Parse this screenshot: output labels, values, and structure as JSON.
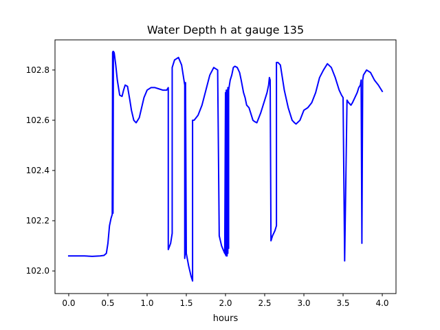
{
  "chart_data": {
    "type": "line",
    "title": "Water Depth h at gauge 135",
    "xlabel": "hours",
    "ylabel": "",
    "xlim": [
      -0.175,
      4.175
    ],
    "ylim": [
      101.91,
      102.92
    ],
    "xticks": [
      0.0,
      0.5,
      1.0,
      1.5,
      2.0,
      2.5,
      3.0,
      3.5,
      4.0
    ],
    "xtick_labels": [
      "0.0",
      "0.5",
      "1.0",
      "1.5",
      "2.0",
      "2.5",
      "3.0",
      "3.5",
      "4.0"
    ],
    "yticks": [
      102.0,
      102.2,
      102.4,
      102.6,
      102.8
    ],
    "ytick_labels": [
      "102.0",
      "102.2",
      "102.4",
      "102.6",
      "102.8"
    ],
    "grid": false,
    "legend": "none",
    "color": "#0000ff",
    "series": [
      {
        "x": [
          0.0,
          0.1,
          0.2,
          0.3,
          0.4,
          0.45,
          0.48,
          0.5,
          0.52,
          0.54,
          0.555,
          0.56,
          0.565,
          0.565,
          0.57,
          0.58,
          0.6,
          0.62,
          0.65,
          0.68,
          0.7,
          0.72,
          0.75,
          0.78,
          0.8,
          0.83,
          0.86,
          0.9,
          0.93,
          0.96,
          1.0,
          1.05,
          1.1,
          1.15,
          1.2,
          1.25,
          1.27,
          1.27,
          1.3,
          1.32,
          1.32,
          1.35,
          1.4,
          1.44,
          1.47,
          1.48,
          1.48,
          1.49,
          1.49,
          1.5,
          1.53,
          1.56,
          1.58,
          1.58,
          1.6,
          1.65,
          1.7,
          1.75,
          1.8,
          1.85,
          1.9,
          1.92,
          1.92,
          1.95,
          1.99,
          2.0,
          2.0,
          2.01,
          2.01,
          2.02,
          2.02,
          2.03,
          2.03,
          2.04,
          2.04,
          2.06,
          2.08,
          2.1,
          2.12,
          2.15,
          2.18,
          2.2,
          2.23,
          2.25,
          2.27,
          2.3,
          2.33,
          2.35,
          2.37,
          2.4,
          2.45,
          2.5,
          2.53,
          2.55,
          2.56,
          2.57,
          2.58,
          2.58,
          2.6,
          2.63,
          2.65,
          2.65,
          2.67,
          2.7,
          2.72,
          2.75,
          2.8,
          2.85,
          2.88,
          2.9,
          2.95,
          3.0,
          3.05,
          3.1,
          3.15,
          3.2,
          3.25,
          3.3,
          3.35,
          3.4,
          3.45,
          3.48,
          3.5,
          3.52,
          3.55,
          3.57,
          3.6,
          3.62,
          3.65,
          3.68,
          3.7,
          3.72,
          3.73,
          3.74,
          3.75,
          3.76,
          3.8,
          3.85,
          3.9,
          3.95,
          4.0
        ],
        "y": [
          102.06,
          102.06,
          102.06,
          102.058,
          102.06,
          102.062,
          102.07,
          102.11,
          102.18,
          102.21,
          102.225,
          102.87,
          102.874,
          102.23,
          102.874,
          102.869,
          102.82,
          102.76,
          102.7,
          102.695,
          102.72,
          102.74,
          102.735,
          102.68,
          102.64,
          102.6,
          102.59,
          102.61,
          102.65,
          102.69,
          102.72,
          102.73,
          102.73,
          102.725,
          102.72,
          102.72,
          102.73,
          102.085,
          102.11,
          102.15,
          102.81,
          102.84,
          102.85,
          102.82,
          102.76,
          102.74,
          102.05,
          102.09,
          102.75,
          102.07,
          102.02,
          101.98,
          101.96,
          102.6,
          102.6,
          102.62,
          102.66,
          102.72,
          102.78,
          102.81,
          102.8,
          102.14,
          102.14,
          102.1,
          102.07,
          102.71,
          102.065,
          102.06,
          102.72,
          102.06,
          102.72,
          102.07,
          102.73,
          102.09,
          102.72,
          102.76,
          102.78,
          102.81,
          102.815,
          102.81,
          102.79,
          102.76,
          102.71,
          102.69,
          102.66,
          102.65,
          102.62,
          102.6,
          102.595,
          102.59,
          102.63,
          102.68,
          102.71,
          102.74,
          102.77,
          102.76,
          102.12,
          102.12,
          102.14,
          102.16,
          102.18,
          102.83,
          102.83,
          102.82,
          102.78,
          102.72,
          102.65,
          102.6,
          102.59,
          102.585,
          102.6,
          102.64,
          102.65,
          102.67,
          102.71,
          102.77,
          102.8,
          102.825,
          102.81,
          102.77,
          102.72,
          102.7,
          102.69,
          102.04,
          102.68,
          102.67,
          102.66,
          102.67,
          102.69,
          102.71,
          102.73,
          102.74,
          102.76,
          102.11,
          102.76,
          102.78,
          102.8,
          102.79,
          102.76,
          102.74,
          102.715
        ]
      }
    ]
  }
}
